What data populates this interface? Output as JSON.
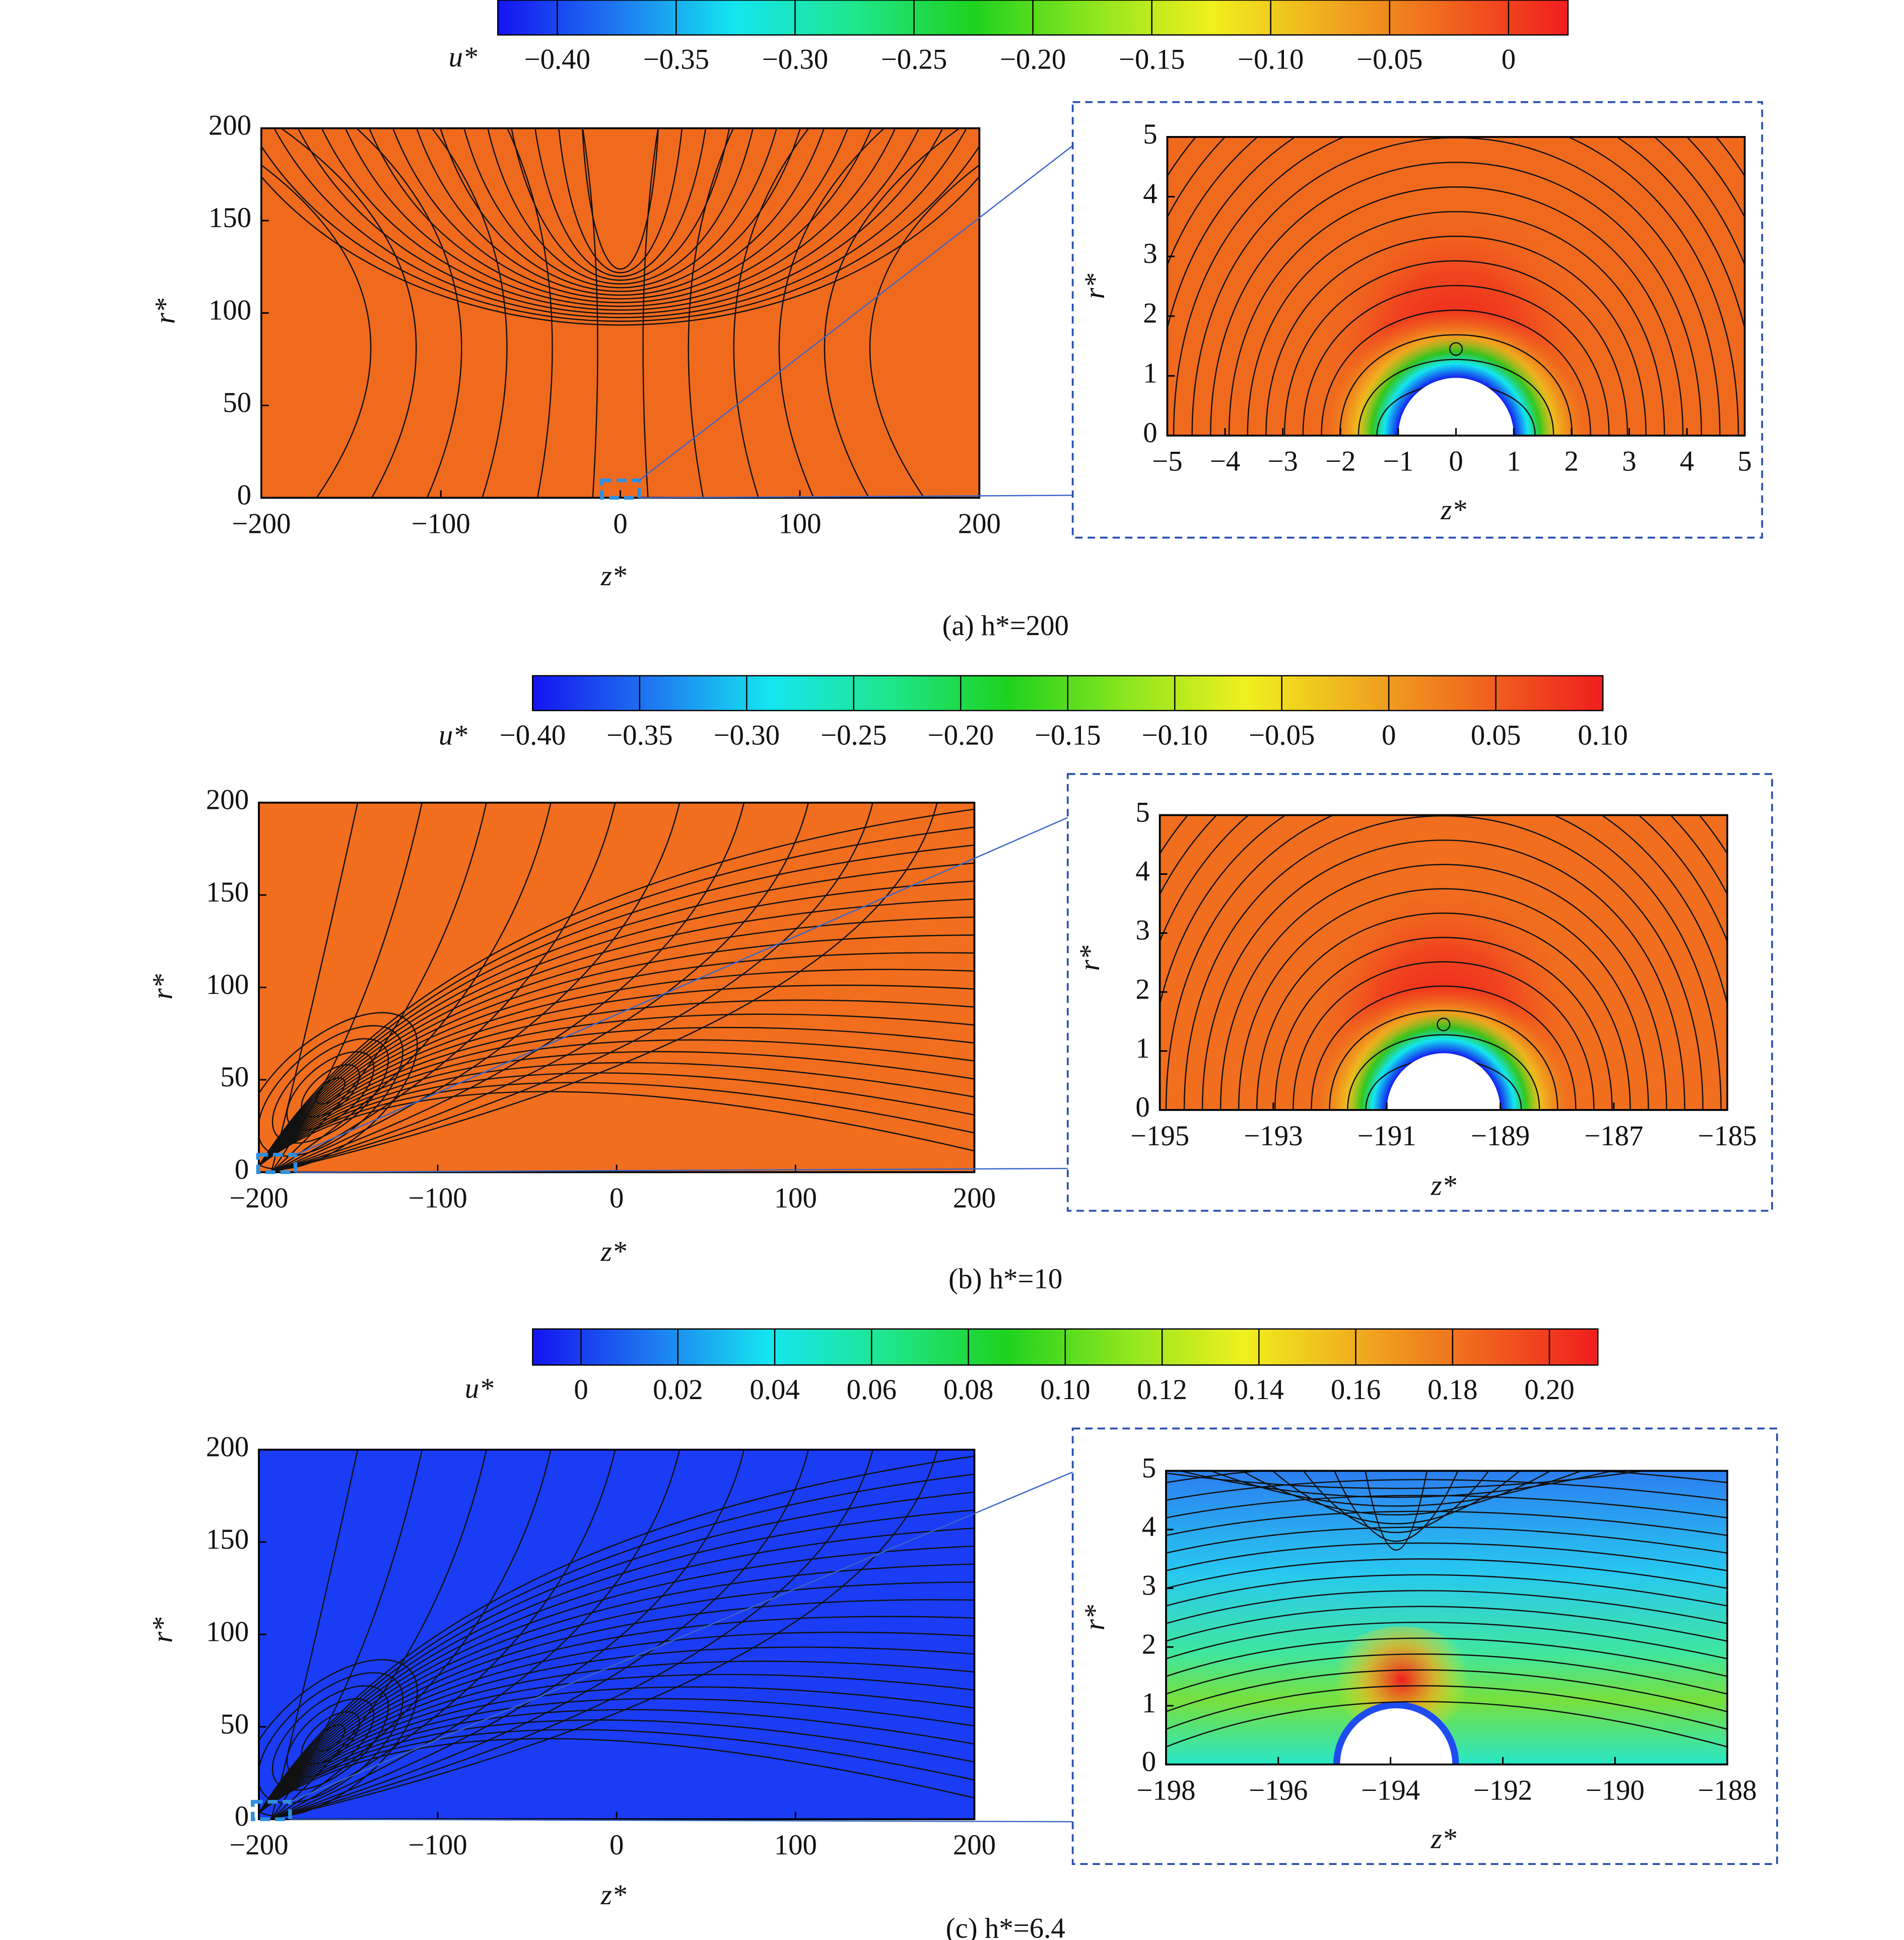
{
  "colormap": [
    "#1414f0",
    "#1e78f0",
    "#14e6f0",
    "#1ee68c",
    "#1ed21e",
    "#8ce61e",
    "#f0f01e",
    "#f0aa1e",
    "#f0641e",
    "#f01e1e"
  ],
  "chart_data": [
    {
      "type": "contour",
      "title": "(a) h*=200",
      "color": "#f06a1e",
      "colorbar_label": "u*",
      "clim": [
        -0.425,
        0.025
      ],
      "cticks": [
        {
          "value": -0.4,
          "label": "−0.40"
        },
        {
          "value": -0.35,
          "label": "−0.35"
        },
        {
          "value": -0.3,
          "label": "−0.30"
        },
        {
          "value": -0.25,
          "label": "−0.25"
        },
        {
          "value": -0.2,
          "label": "−0.20"
        },
        {
          "value": -0.15,
          "label": "−0.15"
        },
        {
          "value": -0.1,
          "label": "−0.10"
        },
        {
          "value": -0.05,
          "label": "−0.05"
        },
        0
      ],
      "xlabel": "z*",
      "ylabel": "r*",
      "xlim": [
        -200,
        200
      ],
      "ylim": [
        0,
        200
      ],
      "xticks": [
        {
          "value": -200,
          "label": "−200"
        },
        {
          "value": -100,
          "label": "−100"
        },
        0,
        100,
        200
      ],
      "yticks": [
        0,
        50,
        100,
        150,
        200
      ],
      "inset": {
        "xlabel": "z*",
        "ylabel": "r*",
        "xlim": [
          -5,
          5
        ],
        "ylim": [
          0,
          5
        ],
        "xticks": [
          {
            "value": -5,
            "label": "−5"
          },
          {
            "value": -4,
            "label": "−4"
          },
          {
            "value": -3,
            "label": "−3"
          },
          {
            "value": -2,
            "label": "−2"
          },
          {
            "value": -1,
            "label": "−1"
          },
          0,
          1,
          2,
          3,
          4,
          5
        ],
        "yticks": [
          0,
          1,
          2,
          3,
          4,
          5
        ]
      }
    },
    {
      "type": "contour",
      "title": "(b) h*=10",
      "color": "#f06e1e",
      "colorbar_label": "u*",
      "clim": [
        -0.4,
        0.1
      ],
      "cticks": [
        {
          "value": -0.4,
          "label": "−0.40"
        },
        {
          "value": -0.35,
          "label": "−0.35"
        },
        {
          "value": -0.3,
          "label": "−0.30"
        },
        {
          "value": -0.25,
          "label": "−0.25"
        },
        {
          "value": -0.2,
          "label": "−0.20"
        },
        {
          "value": -0.15,
          "label": "−0.15"
        },
        {
          "value": -0.1,
          "label": "−0.10"
        },
        {
          "value": -0.05,
          "label": "−0.05"
        },
        0,
        0.05,
        {
          "value": 0.1,
          "label": "0.10"
        }
      ],
      "xlabel": "z*",
      "ylabel": "r*",
      "xlim": [
        -200,
        200
      ],
      "ylim": [
        0,
        200
      ],
      "xticks": [
        {
          "value": -200,
          "label": "−200"
        },
        {
          "value": -100,
          "label": "−100"
        },
        0,
        100,
        200
      ],
      "yticks": [
        0,
        50,
        100,
        150,
        200
      ],
      "inset": {
        "xlabel": "z*",
        "ylabel": "r*",
        "xlim": [
          -195,
          -185
        ],
        "ylim": [
          0,
          5
        ],
        "xticks": [
          {
            "value": -195,
            "label": "−195"
          },
          {
            "value": -193,
            "label": "−193"
          },
          {
            "value": -191,
            "label": "−191"
          },
          {
            "value": -189,
            "label": "−189"
          },
          {
            "value": -187,
            "label": "−187"
          },
          {
            "value": -185,
            "label": "−185"
          }
        ],
        "yticks": [
          0,
          1,
          2,
          3,
          4,
          5
        ]
      }
    },
    {
      "type": "contour",
      "title": "(c) h*=6.4",
      "color": "#1a3cf5",
      "colorbar_label": "u*",
      "clim": [
        -0.01,
        0.21
      ],
      "cticks": [
        0,
        0.02,
        0.04,
        0.06,
        0.08,
        {
          "value": 0.1,
          "label": "0.10"
        },
        0.12,
        0.14,
        0.16,
        0.18,
        {
          "value": 0.2,
          "label": "0.20"
        }
      ],
      "xlabel": "z*",
      "ylabel": "r*",
      "xlim": [
        -200,
        200
      ],
      "ylim": [
        0,
        200
      ],
      "xticks": [
        {
          "value": -200,
          "label": "−200"
        },
        {
          "value": -100,
          "label": "−100"
        },
        0,
        100,
        200
      ],
      "yticks": [
        0,
        50,
        100,
        150,
        200
      ],
      "inset": {
        "xlabel": "z*",
        "ylabel": "r*",
        "xlim": [
          -198,
          -188
        ],
        "ylim": [
          0,
          5
        ],
        "xticks": [
          {
            "value": -198,
            "label": "−198"
          },
          {
            "value": -196,
            "label": "−196"
          },
          {
            "value": -194,
            "label": "−194"
          },
          {
            "value": -192,
            "label": "−192"
          },
          {
            "value": -190,
            "label": "−190"
          },
          {
            "value": -188,
            "label": "−188"
          }
        ],
        "yticks": [
          0,
          1,
          2,
          3,
          4,
          5
        ]
      }
    }
  ]
}
